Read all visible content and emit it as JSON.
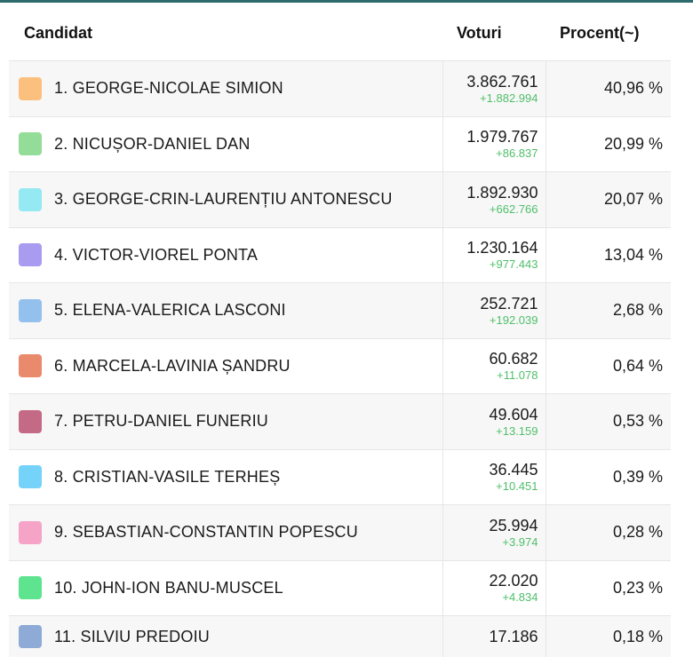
{
  "table": {
    "headers": {
      "candidate": "Candidat",
      "votes": "Voturi",
      "percent": "Procent(~)"
    },
    "rows": [
      {
        "name": "1. GEORGE-NICOLAE SIMION",
        "votes": "3.862.761",
        "delta": "+1.882.994",
        "percent": "40,96 %",
        "color": "#fcc07e"
      },
      {
        "name": "2. NICUȘOR-DANIEL DAN",
        "votes": "1.979.767",
        "delta": "+86.837",
        "percent": "20,99 %",
        "color": "#94dd99"
      },
      {
        "name": "3. GEORGE-CRIN-LAURENȚIU ANTONESCU",
        "votes": "1.892.930",
        "delta": "+662.766",
        "percent": "20,07 %",
        "color": "#94e9f2"
      },
      {
        "name": "4. VICTOR-VIOREL PONTA",
        "votes": "1.230.164",
        "delta": "+977.443",
        "percent": "13,04 %",
        "color": "#a99cf0"
      },
      {
        "name": "5. ELENA-VALERICA LASCONI",
        "votes": "252.721",
        "delta": "+192.039",
        "percent": "2,68 %",
        "color": "#94c0ee"
      },
      {
        "name": "6. MARCELA-LAVINIA ȘANDRU",
        "votes": "60.682",
        "delta": "+11.078",
        "percent": "0,64 %",
        "color": "#e98a6c"
      },
      {
        "name": "7. PETRU-DANIEL FUNERIU",
        "votes": "49.604",
        "delta": "+13.159",
        "percent": "0,53 %",
        "color": "#c46a86"
      },
      {
        "name": "8. CRISTIAN-VASILE TERHEȘ",
        "votes": "36.445",
        "delta": "+10.451",
        "percent": "0,39 %",
        "color": "#75d3fa"
      },
      {
        "name": "9. SEBASTIAN-CONSTANTIN POPESCU",
        "votes": "25.994",
        "delta": "+3.974",
        "percent": "0,28 %",
        "color": "#f5a4c8"
      },
      {
        "name": "10. JOHN-ION BANU-MUSCEL",
        "votes": "22.020",
        "delta": "+4.834",
        "percent": "0,23 %",
        "color": "#5ee48f"
      },
      {
        "name": "11. SILVIU PREDOIU",
        "votes": "17.186",
        "delta": "",
        "percent": "0,18 %",
        "color": "#8eaad6"
      }
    ]
  }
}
